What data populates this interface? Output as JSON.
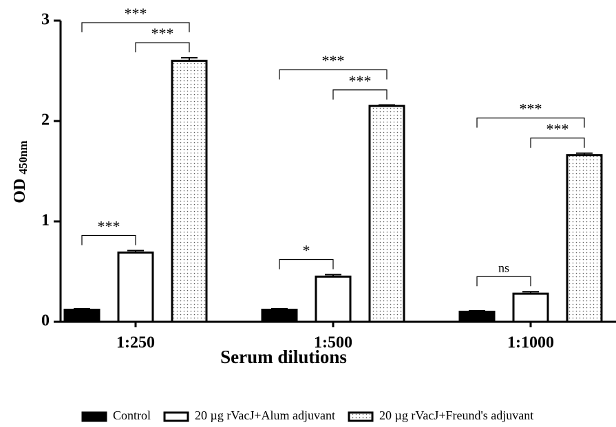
{
  "chart_data": {
    "type": "bar",
    "x_label": "Serum dilutions",
    "y_label": "OD",
    "y_label_sub": "450nm",
    "categories": [
      "1:250",
      "1:500",
      "1:1000"
    ],
    "series": [
      {
        "name": "Control",
        "color": "#000000",
        "fill": "solid",
        "values": [
          0.12,
          0.12,
          0.1
        ],
        "errors": [
          0.01,
          0.01,
          0.01
        ]
      },
      {
        "name": "20 µg rVacJ+Alum adjuvant",
        "color": "#ffffff",
        "fill": "solid",
        "values": [
          0.69,
          0.45,
          0.28
        ],
        "errors": [
          0.02,
          0.02,
          0.02
        ]
      },
      {
        "name": "20 µg rVacJ+Freund's adjuvant",
        "color": "#ffffff",
        "fill": "dots",
        "values": [
          2.6,
          2.15,
          1.66
        ],
        "errors": [
          0.03,
          0.01,
          0.02
        ]
      }
    ],
    "annotations": [
      {
        "category": 0,
        "from": 0,
        "to": 1,
        "label": "***"
      },
      {
        "category": 0,
        "from": 1,
        "to": 2,
        "label": "***"
      },
      {
        "category": 0,
        "from": 0,
        "to": 2,
        "label": "***"
      },
      {
        "category": 1,
        "from": 0,
        "to": 1,
        "label": "*"
      },
      {
        "category": 1,
        "from": 1,
        "to": 2,
        "label": "***"
      },
      {
        "category": 1,
        "from": 0,
        "to": 2,
        "label": "***"
      },
      {
        "category": 2,
        "from": 0,
        "to": 1,
        "label": "ns"
      },
      {
        "category": 2,
        "from": 1,
        "to": 2,
        "label": "***"
      },
      {
        "category": 2,
        "from": 0,
        "to": 2,
        "label": "***"
      }
    ],
    "ylim": [
      0,
      3
    ],
    "yticks": [
      0,
      1,
      2,
      3
    ],
    "legend": "bottom"
  }
}
